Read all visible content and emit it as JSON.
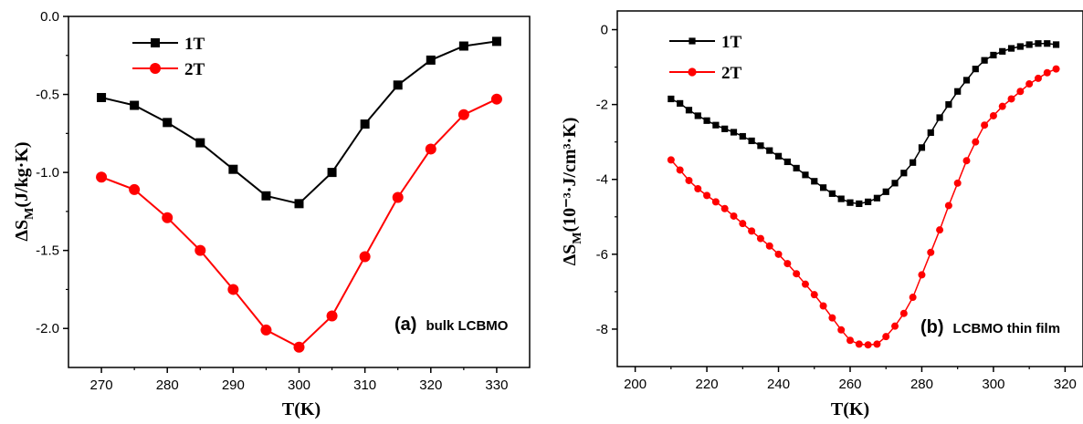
{
  "chart_data": [
    {
      "type": "line",
      "panel_label": "(a)",
      "annotation": "bulk LCBMO",
      "xlabel": "T(K)",
      "ylabel_main": "ΔS",
      "ylabel_sub": "M",
      "ylabel_rest": "(J/kg·K)",
      "xlim": [
        265,
        335
      ],
      "ylim": [
        -2.25,
        0.0
      ],
      "xticks": [
        "270",
        "280",
        "290",
        "300",
        "310",
        "320",
        "330"
      ],
      "yticks": [
        "0.0",
        "-0.5",
        "-1.0",
        "-1.5",
        "-2.0"
      ],
      "legend_position": "top-left",
      "series": [
        {
          "name": "1T",
          "color": "#000000",
          "marker": "square",
          "x": [
            270,
            275,
            280,
            285,
            290,
            295,
            300,
            305,
            310,
            315,
            320,
            325,
            330
          ],
          "y": [
            -0.52,
            -0.57,
            -0.68,
            -0.81,
            -0.98,
            -1.15,
            -1.2,
            -1.0,
            -0.69,
            -0.44,
            -0.28,
            -0.19,
            -0.16
          ]
        },
        {
          "name": "2T",
          "color": "#ff0000",
          "marker": "circle",
          "x": [
            270,
            275,
            280,
            285,
            290,
            295,
            300,
            305,
            310,
            315,
            320,
            325,
            330
          ],
          "y": [
            -1.03,
            -1.11,
            -1.29,
            -1.5,
            -1.75,
            -2.01,
            -2.12,
            -1.92,
            -1.54,
            -1.16,
            -0.85,
            -0.63,
            -0.53
          ]
        }
      ]
    },
    {
      "type": "line",
      "panel_label": "(b)",
      "annotation": "LCBMO thin film",
      "xlabel": "T(K)",
      "ylabel_main": "ΔS",
      "ylabel_sub": "M",
      "ylabel_rest": "(10⁻³·J/cm³·K)",
      "xlim": [
        195,
        325
      ],
      "ylim": [
        -9.0,
        0.5
      ],
      "xticks": [
        "200",
        "220",
        "240",
        "260",
        "280",
        "300",
        "320"
      ],
      "yticks": [
        "0",
        "-2",
        "-4",
        "-6",
        "-8"
      ],
      "legend_position": "top-left",
      "series": [
        {
          "name": "1T",
          "color": "#000000",
          "marker": "square",
          "x": [
            210,
            212.5,
            215,
            217.5,
            220,
            222.5,
            225,
            227.5,
            230,
            232.5,
            235,
            237.5,
            240,
            242.5,
            245,
            247.5,
            250,
            252.5,
            255,
            257.5,
            260,
            262.5,
            265,
            267.5,
            270,
            272.5,
            275,
            277.5,
            280,
            282.5,
            285,
            287.5,
            290,
            292.5,
            295,
            297.5,
            300,
            302.5,
            305,
            307.5,
            310,
            312.5,
            315,
            317.5
          ],
          "y": [
            -1.85,
            -1.97,
            -2.15,
            -2.3,
            -2.43,
            -2.55,
            -2.65,
            -2.74,
            -2.85,
            -2.97,
            -3.1,
            -3.23,
            -3.38,
            -3.53,
            -3.7,
            -3.88,
            -4.05,
            -4.22,
            -4.38,
            -4.52,
            -4.62,
            -4.65,
            -4.6,
            -4.5,
            -4.33,
            -4.1,
            -3.83,
            -3.55,
            -3.15,
            -2.75,
            -2.35,
            -2.0,
            -1.65,
            -1.35,
            -1.05,
            -0.82,
            -0.68,
            -0.58,
            -0.5,
            -0.45,
            -0.4,
            -0.37,
            -0.37,
            -0.4
          ]
        },
        {
          "name": "2T",
          "color": "#ff0000",
          "marker": "circle",
          "x": [
            210,
            212.5,
            215,
            217.5,
            220,
            222.5,
            225,
            227.5,
            230,
            232.5,
            235,
            237.5,
            240,
            242.5,
            245,
            247.5,
            250,
            252.5,
            255,
            257.5,
            260,
            262.5,
            265,
            267.5,
            270,
            272.5,
            275,
            277.5,
            280,
            282.5,
            285,
            287.5,
            290,
            292.5,
            295,
            297.5,
            300,
            302.5,
            305,
            307.5,
            310,
            312.5,
            315,
            317.5
          ],
          "y": [
            -3.48,
            -3.75,
            -4.03,
            -4.25,
            -4.43,
            -4.6,
            -4.78,
            -4.98,
            -5.18,
            -5.38,
            -5.58,
            -5.78,
            -6.0,
            -6.25,
            -6.52,
            -6.8,
            -7.08,
            -7.38,
            -7.7,
            -8.02,
            -8.3,
            -8.4,
            -8.42,
            -8.4,
            -8.2,
            -7.92,
            -7.58,
            -7.15,
            -6.55,
            -5.95,
            -5.35,
            -4.7,
            -4.1,
            -3.5,
            -3.0,
            -2.55,
            -2.3,
            -2.05,
            -1.85,
            -1.65,
            -1.45,
            -1.3,
            -1.15,
            -1.05
          ]
        }
      ]
    }
  ]
}
